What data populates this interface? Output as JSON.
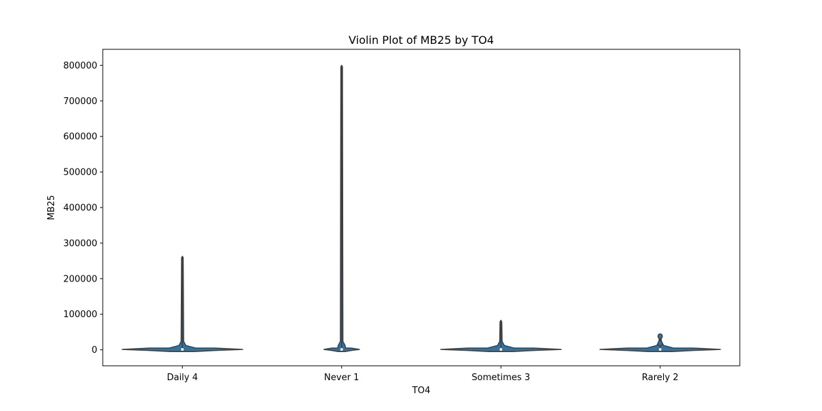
{
  "chart_data": {
    "type": "violin",
    "title": "Violin Plot of MB25 by TO4",
    "xlabel": "TO4",
    "ylabel": "MB25",
    "categories": [
      "Daily 4",
      "Never 1",
      "Sometimes 3",
      "Rarely 2"
    ],
    "ylim": [
      -45000,
      845000
    ],
    "yticks": [
      0,
      100000,
      200000,
      300000,
      400000,
      500000,
      600000,
      700000,
      800000
    ],
    "ytick_labels": [
      "0",
      "100000",
      "200000",
      "300000",
      "400000",
      "500000",
      "600000",
      "700000",
      "800000"
    ],
    "violins": [
      {
        "category": "Daily 4",
        "min": -5000,
        "max": 263000,
        "median": 1000,
        "q1": 0,
        "q3": 3000
      },
      {
        "category": "Never 1",
        "min": -5000,
        "max": 800000,
        "median": 1000,
        "q1": 0,
        "q3": 3000
      },
      {
        "category": "Sometimes 3",
        "min": -5000,
        "max": 83000,
        "median": 1000,
        "q1": 0,
        "q3": 3000
      },
      {
        "category": "Rarely 2",
        "min": -5000,
        "max": 40000,
        "median": 1000,
        "q1": 0,
        "q3": 3000
      }
    ],
    "grid": false,
    "colors": {
      "fill": "#3274a1",
      "edge": "#3f3f3f"
    }
  }
}
